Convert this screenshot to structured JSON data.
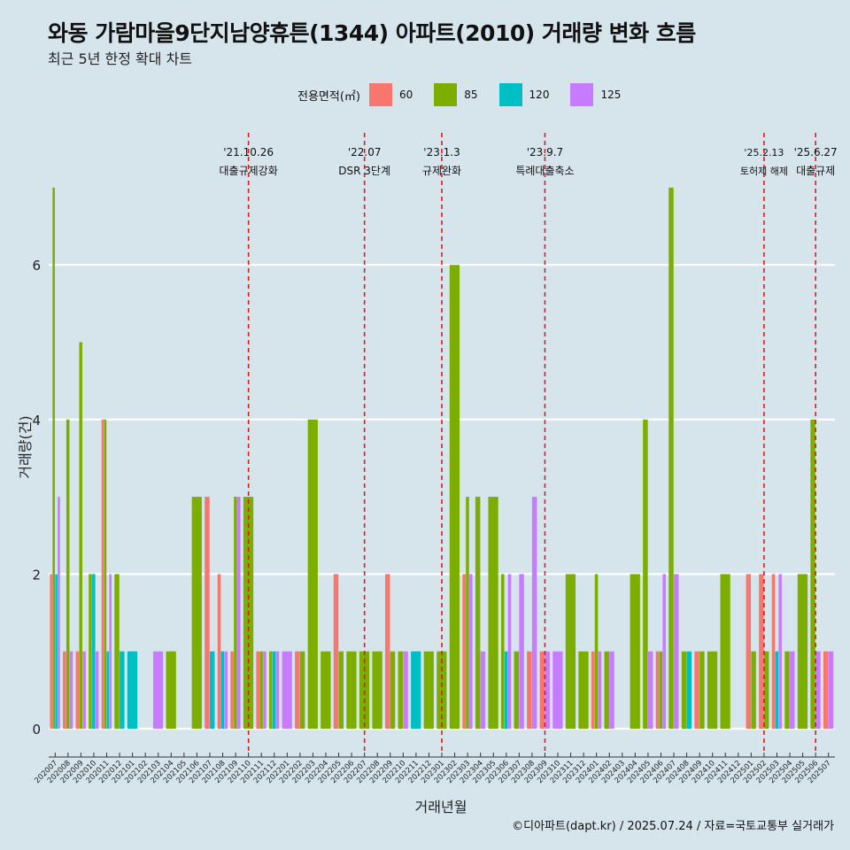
{
  "title": "와동 가람마을9단지남양휴튼(1344) 아파트(2010) 거래량 변화 흐름",
  "subtitle": "최근 5년 한정 확대 차트",
  "caption": "©디아파트(dapt.kr) / 2025.07.24 / 자료=국토교통부 실거래가",
  "chart_data": {
    "type": "bar",
    "xlabel": "거래년월",
    "ylabel": "거래량(건)",
    "ylim": [
      0,
      7
    ],
    "yticks": [
      0,
      2,
      4,
      6
    ],
    "legend": {
      "title": "전용면적(㎡)",
      "placement": "top",
      "entries": [
        {
          "name": "60",
          "color": "#f8766d"
        },
        {
          "name": "85",
          "color": "#7cae00"
        },
        {
          "name": "120",
          "color": "#00bfc4"
        },
        {
          "name": "125",
          "color": "#c77cff"
        }
      ]
    },
    "categories": [
      "202007",
      "202008",
      "202009",
      "202010",
      "202011",
      "202012",
      "202101",
      "202102",
      "202103",
      "202104",
      "202105",
      "202106",
      "202107",
      "202108",
      "202109",
      "202110",
      "202111",
      "202112",
      "202201",
      "202202",
      "202203",
      "202204",
      "202205",
      "202206",
      "202207",
      "202208",
      "202209",
      "202210",
      "202211",
      "202212",
      "202301",
      "202302",
      "202303",
      "202304",
      "202305",
      "202306",
      "202307",
      "202308",
      "202309",
      "202310",
      "202311",
      "202312",
      "202401",
      "202402",
      "202403",
      "202404",
      "202405",
      "202406",
      "202407",
      "202408",
      "202409",
      "202410",
      "202411",
      "202412",
      "202501",
      "202502",
      "202503",
      "202504",
      "202505",
      "202506",
      "202507"
    ],
    "months": [
      [
        {
          "s": "60",
          "v": 2
        },
        {
          "s": "85",
          "v": 7
        },
        {
          "s": "120",
          "v": 2
        },
        {
          "s": "125",
          "v": 3
        }
      ],
      [
        {
          "s": "60",
          "v": 1
        },
        {
          "s": "85",
          "v": 4
        },
        {
          "s": "125",
          "v": 1
        }
      ],
      [
        {
          "s": "60",
          "v": 1
        },
        {
          "s": "85",
          "v": 5
        },
        {
          "s": "125",
          "v": 1
        }
      ],
      [
        {
          "s": "85",
          "v": 2
        },
        {
          "s": "120",
          "v": 2
        },
        {
          "s": "125",
          "v": 1
        }
      ],
      [
        {
          "s": "60",
          "v": 4
        },
        {
          "s": "85",
          "v": 4
        },
        {
          "s": "120",
          "v": 1
        },
        {
          "s": "125",
          "v": 2
        }
      ],
      [
        {
          "s": "85",
          "v": 2
        },
        {
          "s": "120",
          "v": 1
        }
      ],
      [
        {
          "s": "120",
          "v": 1
        }
      ],
      [],
      [
        {
          "s": "125",
          "v": 1
        }
      ],
      [
        {
          "s": "85",
          "v": 1
        }
      ],
      [],
      [
        {
          "s": "85",
          "v": 3
        }
      ],
      [
        {
          "s": "60",
          "v": 3
        },
        {
          "s": "120",
          "v": 1
        }
      ],
      [
        {
          "s": "60",
          "v": 2
        },
        {
          "s": "120",
          "v": 1
        },
        {
          "s": "125",
          "v": 1
        }
      ],
      [
        {
          "s": "60",
          "v": 1
        },
        {
          "s": "85",
          "v": 3
        },
        {
          "s": "125",
          "v": 3
        }
      ],
      [
        {
          "s": "85",
          "v": 3
        }
      ],
      [
        {
          "s": "60",
          "v": 1
        },
        {
          "s": "85",
          "v": 1
        },
        {
          "s": "125",
          "v": 1
        }
      ],
      [
        {
          "s": "85",
          "v": 1
        },
        {
          "s": "120",
          "v": 1
        },
        {
          "s": "125",
          "v": 1
        }
      ],
      [
        {
          "s": "125",
          "v": 1
        }
      ],
      [
        {
          "s": "60",
          "v": 1
        },
        {
          "s": "85",
          "v": 1
        }
      ],
      [
        {
          "s": "85",
          "v": 4
        }
      ],
      [
        {
          "s": "85",
          "v": 1
        }
      ],
      [
        {
          "s": "60",
          "v": 2
        },
        {
          "s": "85",
          "v": 1
        }
      ],
      [
        {
          "s": "85",
          "v": 1
        }
      ],
      [
        {
          "s": "85",
          "v": 1
        }
      ],
      [
        {
          "s": "85",
          "v": 1
        }
      ],
      [
        {
          "s": "60",
          "v": 2
        },
        {
          "s": "85",
          "v": 1
        }
      ],
      [
        {
          "s": "85",
          "v": 1
        },
        {
          "s": "125",
          "v": 1
        }
      ],
      [
        {
          "s": "120",
          "v": 1
        }
      ],
      [
        {
          "s": "85",
          "v": 1
        }
      ],
      [
        {
          "s": "85",
          "v": 1
        }
      ],
      [
        {
          "s": "85",
          "v": 6
        }
      ],
      [
        {
          "s": "60",
          "v": 2
        },
        {
          "s": "85",
          "v": 3
        },
        {
          "s": "125",
          "v": 2
        }
      ],
      [
        {
          "s": "85",
          "v": 3
        },
        {
          "s": "125",
          "v": 1
        }
      ],
      [
        {
          "s": "85",
          "v": 3
        }
      ],
      [
        {
          "s": "85",
          "v": 2
        },
        {
          "s": "120",
          "v": 1
        },
        {
          "s": "125",
          "v": 2
        }
      ],
      [
        {
          "s": "85",
          "v": 1
        },
        {
          "s": "125",
          "v": 2
        }
      ],
      [
        {
          "s": "60",
          "v": 1
        },
        {
          "s": "125",
          "v": 3
        }
      ],
      [
        {
          "s": "60",
          "v": 1
        },
        {
          "s": "125",
          "v": 1
        }
      ],
      [
        {
          "s": "125",
          "v": 1
        }
      ],
      [
        {
          "s": "85",
          "v": 2
        }
      ],
      [
        {
          "s": "85",
          "v": 1
        }
      ],
      [
        {
          "s": "60",
          "v": 1
        },
        {
          "s": "85",
          "v": 2
        },
        {
          "s": "125",
          "v": 1
        }
      ],
      [
        {
          "s": "85",
          "v": 1
        },
        {
          "s": "125",
          "v": 1
        }
      ],
      [],
      [
        {
          "s": "85",
          "v": 2
        }
      ],
      [
        {
          "s": "85",
          "v": 4
        },
        {
          "s": "125",
          "v": 1
        }
      ],
      [
        {
          "s": "60",
          "v": 1
        },
        {
          "s": "85",
          "v": 1
        },
        {
          "s": "125",
          "v": 2
        }
      ],
      [
        {
          "s": "85",
          "v": 7
        },
        {
          "s": "125",
          "v": 2
        }
      ],
      [
        {
          "s": "85",
          "v": 1
        },
        {
          "s": "120",
          "v": 1
        }
      ],
      [
        {
          "s": "60",
          "v": 1
        },
        {
          "s": "85",
          "v": 1
        }
      ],
      [
        {
          "s": "85",
          "v": 1
        }
      ],
      [
        {
          "s": "85",
          "v": 2
        }
      ],
      [],
      [
        {
          "s": "60",
          "v": 2
        },
        {
          "s": "85",
          "v": 1
        }
      ],
      [
        {
          "s": "60",
          "v": 2
        },
        {
          "s": "85",
          "v": 1
        }
      ],
      [
        {
          "s": "60",
          "v": 2
        },
        {
          "s": "120",
          "v": 1
        },
        {
          "s": "125",
          "v": 2
        }
      ],
      [
        {
          "s": "85",
          "v": 1
        },
        {
          "s": "125",
          "v": 1
        }
      ],
      [
        {
          "s": "85",
          "v": 2
        }
      ],
      [
        {
          "s": "85",
          "v": 4
        },
        {
          "s": "125",
          "v": 1
        }
      ],
      [
        {
          "s": "60",
          "v": 1
        },
        {
          "s": "125",
          "v": 1
        }
      ]
    ],
    "annotations": [
      {
        "at": "202110",
        "date": "'21.10.26",
        "label": "대출규제강화"
      },
      {
        "at": "202207",
        "date": "'22.07",
        "label": "DSR 3단계"
      },
      {
        "at": "202301",
        "date": "'23.1.3",
        "label": "규제완화"
      },
      {
        "at": "202309",
        "date": "'23.9.7",
        "label": "특례대출축소"
      },
      {
        "at": "202502",
        "date": "'25.2.13",
        "label": "토허제 해제"
      },
      {
        "at": "202506",
        "date": "'25.6.27",
        "label": "대출규제"
      }
    ]
  }
}
